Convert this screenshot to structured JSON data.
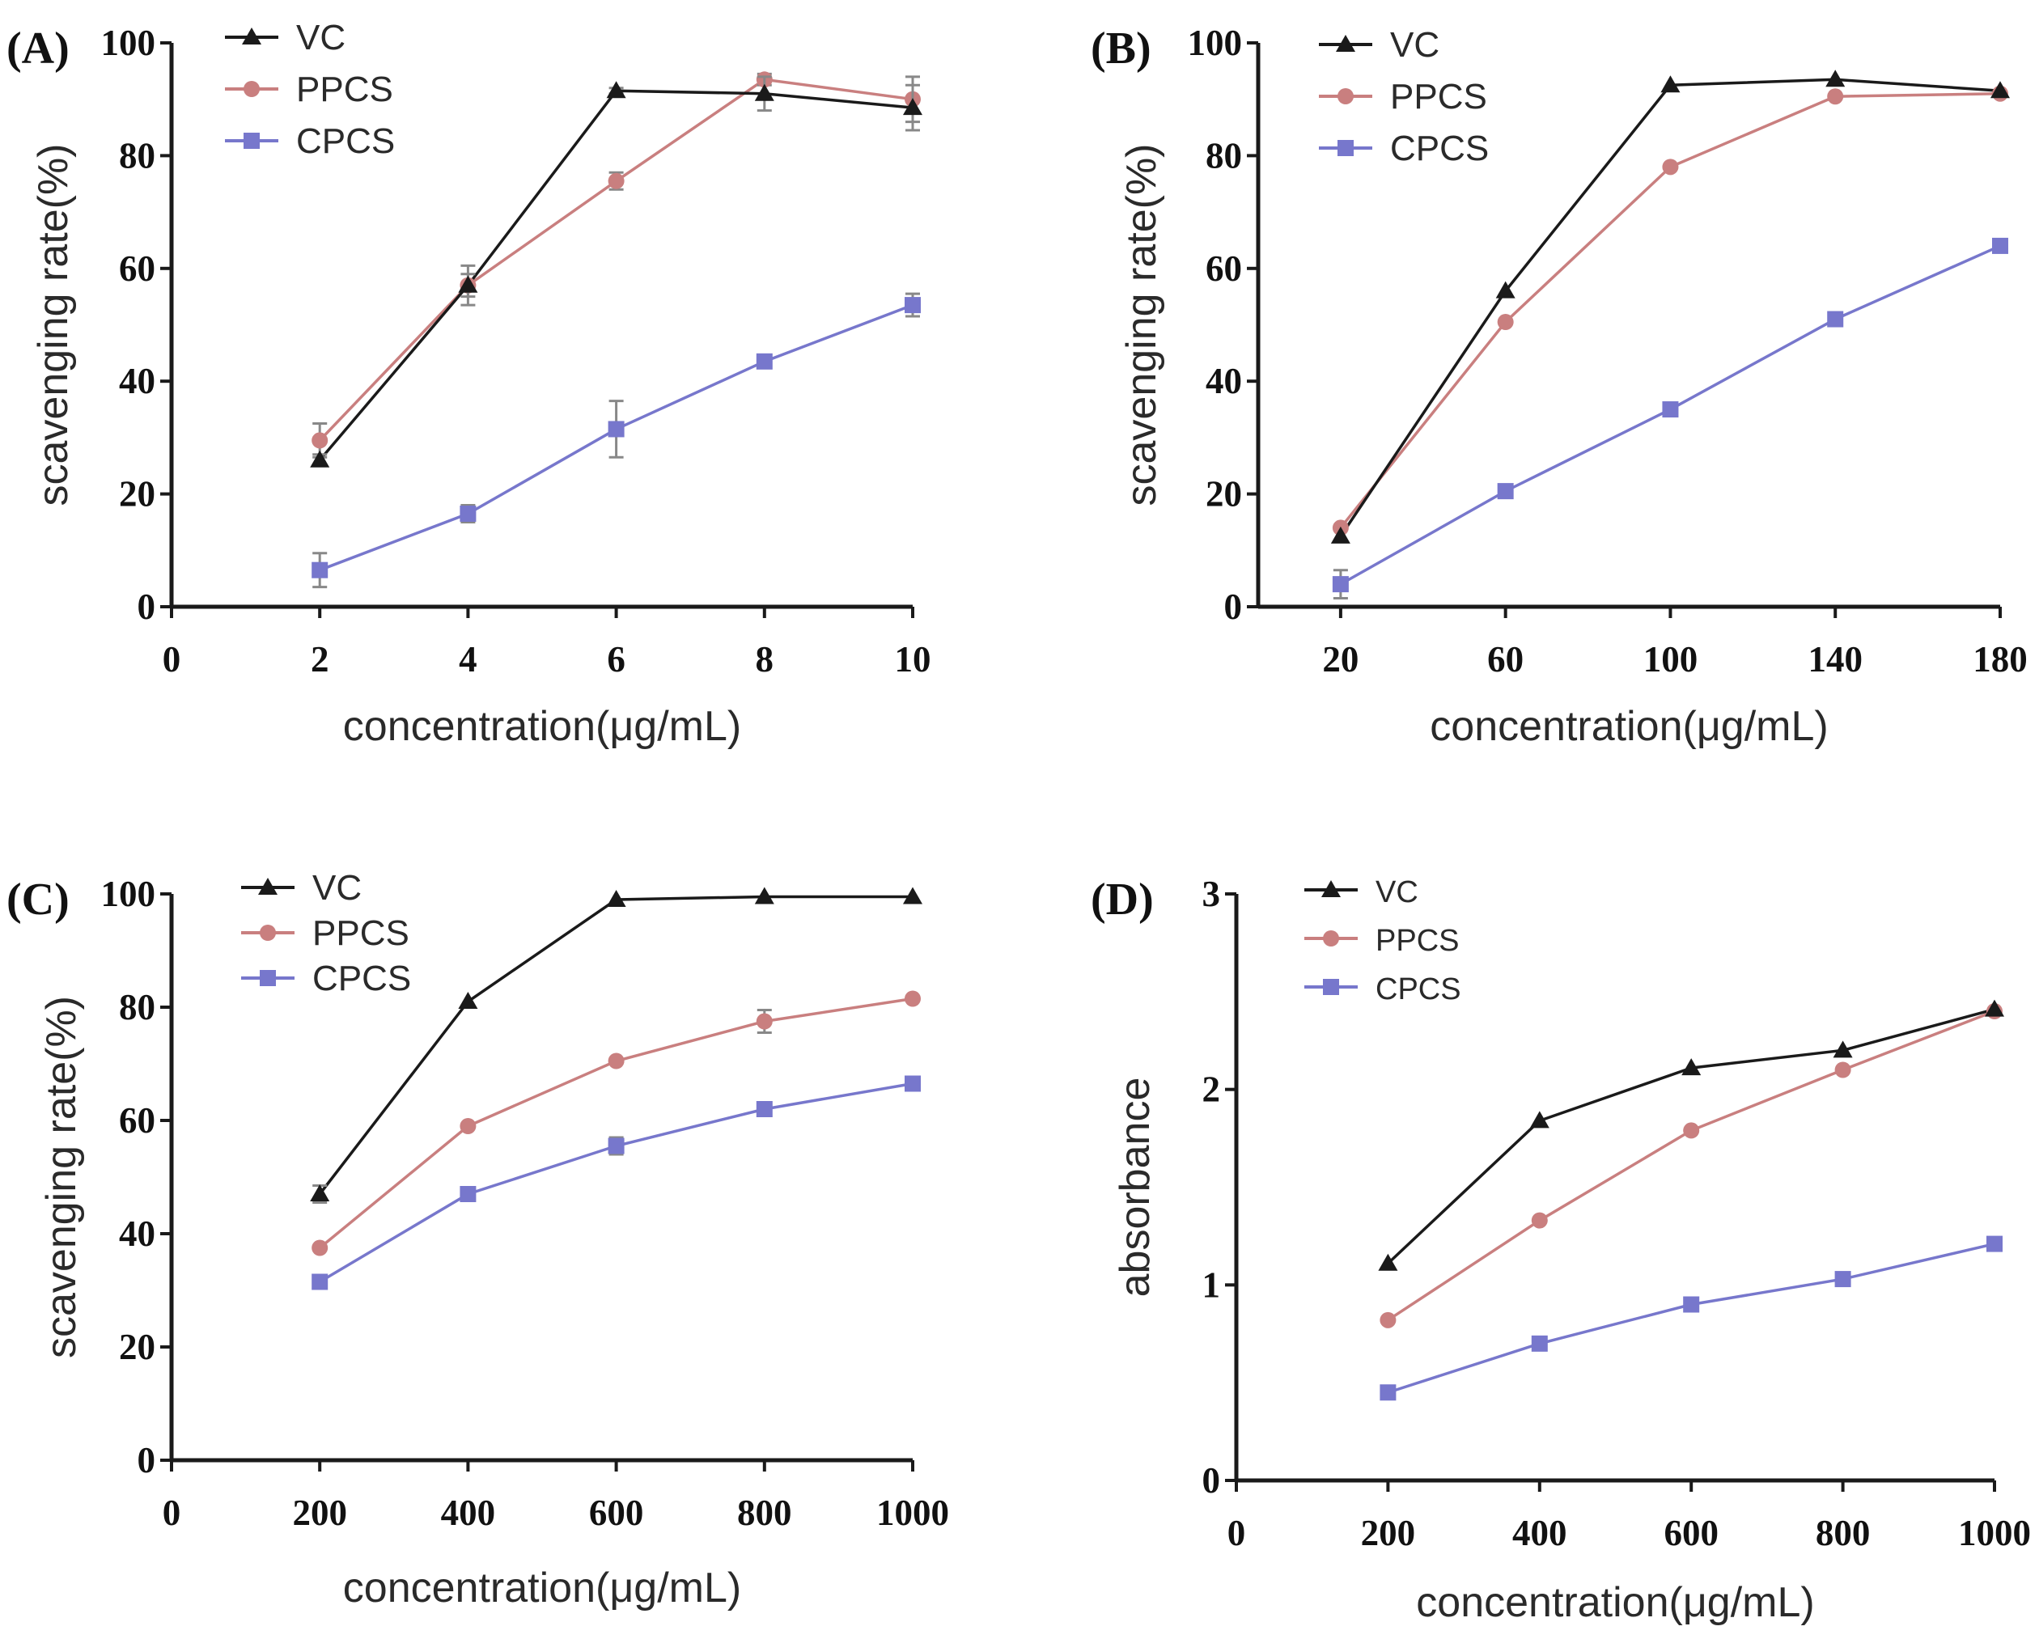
{
  "figure": {
    "panel_labels": [
      "(A)",
      "(B)",
      "(C)",
      "(D)"
    ]
  },
  "styles": {
    "colors": {
      "VC": "#1a1a1a",
      "PPCS": "#c97f7f",
      "CPCS": "#7777cc",
      "err": "#888888"
    },
    "markers": {
      "VC": "triangle",
      "PPCS": "circle",
      "CPCS": "square"
    }
  },
  "chart_data": [
    {
      "id": "A",
      "type": "line",
      "panel_label": "(A)",
      "xlabel": "concentration(μg/mL)",
      "ylabel": "scavenging rate(%)",
      "xlim": [
        0,
        10
      ],
      "ylim": [
        0,
        100
      ],
      "xticks": [
        0,
        2,
        4,
        6,
        8,
        10
      ],
      "yticks": [
        0,
        20,
        40,
        60,
        80,
        100
      ],
      "x": [
        2,
        4,
        6,
        8,
        10
      ],
      "legend": [
        "VC",
        "PPCS",
        "CPCS"
      ],
      "series": [
        {
          "name": "VC",
          "values": [
            26,
            57,
            91.5,
            91,
            88.5
          ],
          "errors": [
            1,
            3.5,
            0.5,
            3,
            4
          ]
        },
        {
          "name": "PPCS",
          "values": [
            29.5,
            57,
            75.5,
            93.5,
            90
          ],
          "errors": [
            3,
            2,
            1.5,
            1,
            4
          ]
        },
        {
          "name": "CPCS",
          "values": [
            6.5,
            16.5,
            31.5,
            43.5,
            53.5
          ],
          "errors": [
            3,
            1.5,
            5,
            0.5,
            2
          ]
        }
      ]
    },
    {
      "id": "B",
      "type": "line",
      "panel_label": "(B)",
      "xlabel": "concentration(μg/mL)",
      "ylabel": "scavenging rate(%)",
      "xlim": [
        0,
        180
      ],
      "ylim": [
        0,
        100
      ],
      "xticks": [
        20,
        60,
        100,
        140,
        180
      ],
      "yticks": [
        0,
        20,
        40,
        60,
        80,
        100
      ],
      "x": [
        20,
        60,
        100,
        140,
        180
      ],
      "legend": [
        "VC",
        "PPCS",
        "CPCS"
      ],
      "series": [
        {
          "name": "VC",
          "values": [
            12.5,
            56,
            92.5,
            93.5,
            91.5
          ],
          "errors": [
            0,
            0,
            0,
            0,
            0
          ]
        },
        {
          "name": "PPCS",
          "values": [
            14,
            50.5,
            78,
            90.5,
            91
          ],
          "errors": [
            0,
            0,
            0,
            0,
            0
          ]
        },
        {
          "name": "CPCS",
          "values": [
            4,
            20.5,
            35,
            51,
            64
          ],
          "errors": [
            2.5,
            0,
            0,
            0,
            0
          ]
        }
      ]
    },
    {
      "id": "C",
      "type": "line",
      "panel_label": "(C)",
      "xlabel": "concentration(μg/mL)",
      "ylabel": "scavenging rate(%)",
      "xlim": [
        0,
        1000
      ],
      "ylim": [
        0,
        100
      ],
      "xticks": [
        0,
        200,
        400,
        600,
        800,
        1000
      ],
      "yticks": [
        0,
        20,
        40,
        60,
        80,
        100
      ],
      "x": [
        200,
        400,
        600,
        800,
        1000
      ],
      "legend": [
        "VC",
        "PPCS",
        "CPCS"
      ],
      "series": [
        {
          "name": "VC",
          "values": [
            47,
            81,
            99,
            99.5,
            99.5
          ],
          "errors": [
            1.5,
            0,
            0,
            0,
            0
          ]
        },
        {
          "name": "PPCS",
          "values": [
            37.5,
            59,
            70.5,
            77.5,
            81.5
          ],
          "errors": [
            0,
            0,
            0,
            2,
            0
          ]
        },
        {
          "name": "CPCS",
          "values": [
            31.5,
            47,
            55.5,
            62,
            66.5
          ],
          "errors": [
            0,
            0,
            1.5,
            0,
            0
          ]
        }
      ]
    },
    {
      "id": "D",
      "type": "line",
      "panel_label": "(D)",
      "xlabel": "concentration(μg/mL)",
      "ylabel": "absorbance",
      "xlim": [
        0,
        1000
      ],
      "ylim": [
        0,
        3
      ],
      "xticks": [
        0,
        200,
        400,
        600,
        800,
        1000
      ],
      "yticks": [
        0,
        1,
        2,
        3
      ],
      "x": [
        200,
        400,
        600,
        800,
        1000
      ],
      "legend": [
        "VC",
        "PPCS",
        "CPCS"
      ],
      "series": [
        {
          "name": "VC",
          "values": [
            1.11,
            1.84,
            2.11,
            2.2,
            2.41
          ],
          "errors": [
            0,
            0,
            0,
            0,
            0
          ]
        },
        {
          "name": "PPCS",
          "values": [
            0.82,
            1.33,
            1.79,
            2.1,
            2.4
          ],
          "errors": [
            0,
            0,
            0,
            0,
            0
          ]
        },
        {
          "name": "CPCS",
          "values": [
            0.45,
            0.7,
            0.9,
            1.03,
            1.21
          ],
          "errors": [
            0,
            0,
            0,
            0,
            0
          ]
        }
      ]
    }
  ]
}
